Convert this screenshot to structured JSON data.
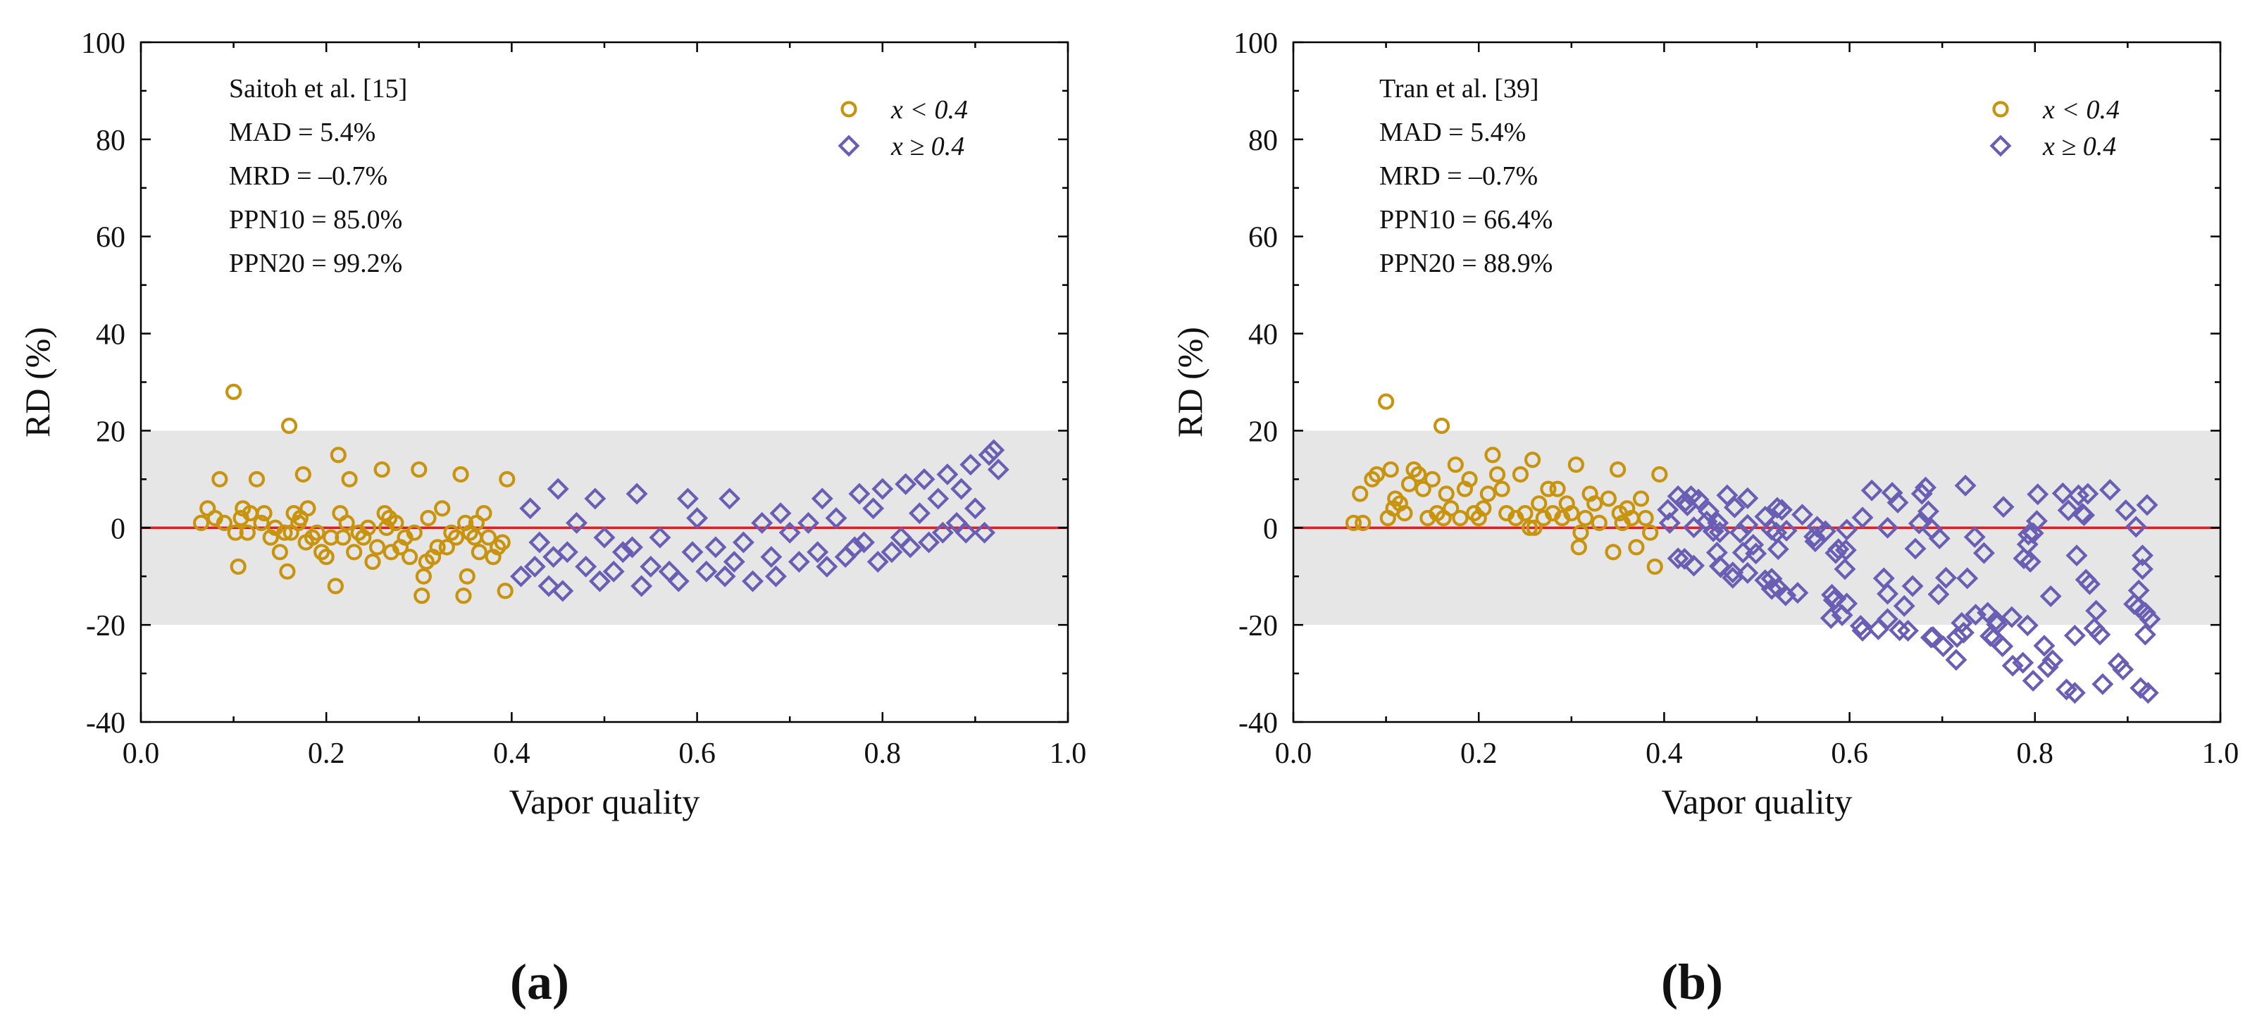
{
  "colors": {
    "low_quality": "#c8940f",
    "high_quality": "#6a5db4",
    "zero_line": "#e02020",
    "band": "#e6e6e6",
    "axis": "#000000"
  },
  "chart_data": [
    {
      "type": "scatter",
      "panel_label": "(a)",
      "title": "",
      "xlabel": "Vapor quality",
      "ylabel": "RD (%)",
      "xlim": [
        0.0,
        1.0
      ],
      "ylim": [
        -40,
        100
      ],
      "xticks": [
        "0.0",
        "0.2",
        "0.4",
        "0.6",
        "0.8",
        "1.0"
      ],
      "yticks": [
        "-40",
        "-20",
        "0",
        "20",
        "40",
        "60",
        "80",
        "100"
      ],
      "band": [
        -20,
        20
      ],
      "reference_line": 0,
      "stats": [
        "Saitoh et al. [15]",
        "MAD = 5.4%",
        "MRD = –0.7%",
        "PPN10 = 85.0%",
        "PPN20 = 99.2%"
      ],
      "legend_position": "top-right",
      "series": [
        {
          "name": "x < 0.4",
          "marker": "circle",
          "x": [
            0.065,
            0.072,
            0.08,
            0.085,
            0.09,
            0.1,
            0.102,
            0.105,
            0.108,
            0.11,
            0.115,
            0.118,
            0.125,
            0.13,
            0.133,
            0.14,
            0.145,
            0.15,
            0.155,
            0.158,
            0.16,
            0.162,
            0.165,
            0.17,
            0.172,
            0.175,
            0.178,
            0.18,
            0.185,
            0.19,
            0.195,
            0.2,
            0.205,
            0.21,
            0.213,
            0.215,
            0.218,
            0.222,
            0.225,
            0.23,
            0.235,
            0.24,
            0.245,
            0.25,
            0.255,
            0.26,
            0.263,
            0.265,
            0.268,
            0.27,
            0.275,
            0.28,
            0.285,
            0.29,
            0.295,
            0.3,
            0.303,
            0.305,
            0.308,
            0.31,
            0.315,
            0.32,
            0.325,
            0.33,
            0.335,
            0.34,
            0.345,
            0.348,
            0.35,
            0.352,
            0.355,
            0.36,
            0.362,
            0.365,
            0.37,
            0.375,
            0.38,
            0.385,
            0.39,
            0.393,
            0.395
          ],
          "values": [
            1,
            4,
            2,
            10,
            1,
            28,
            -1,
            -8,
            2,
            4,
            -1,
            3,
            10,
            1,
            3,
            -2,
            0,
            -5,
            -1,
            -9,
            21,
            -1,
            3,
            1,
            2,
            11,
            -3,
            4,
            -2,
            -1,
            -5,
            -6,
            -2,
            -12,
            15,
            3,
            -2,
            1,
            10,
            -5,
            -1,
            -2,
            0,
            -7,
            -4,
            12,
            3,
            0,
            2,
            -5,
            1,
            -4,
            -2,
            -6,
            -1,
            12,
            -14,
            -10,
            -7,
            2,
            -6,
            -4,
            4,
            -4,
            -1,
            -2,
            11,
            -14,
            1,
            -10,
            -1,
            -2,
            1,
            -5,
            3,
            -2,
            -6,
            -4,
            -3,
            -13,
            10
          ]
        },
        {
          "name": "x ≥ 0.4",
          "marker": "diamond",
          "x": [
            0.41,
            0.42,
            0.425,
            0.43,
            0.44,
            0.445,
            0.45,
            0.455,
            0.46,
            0.47,
            0.48,
            0.49,
            0.495,
            0.5,
            0.51,
            0.52,
            0.53,
            0.535,
            0.54,
            0.55,
            0.56,
            0.57,
            0.58,
            0.59,
            0.595,
            0.6,
            0.61,
            0.62,
            0.63,
            0.635,
            0.64,
            0.65,
            0.66,
            0.67,
            0.68,
            0.685,
            0.69,
            0.7,
            0.71,
            0.72,
            0.73,
            0.735,
            0.74,
            0.75,
            0.76,
            0.77,
            0.775,
            0.78,
            0.79,
            0.795,
            0.8,
            0.81,
            0.82,
            0.825,
            0.83,
            0.84,
            0.845,
            0.85,
            0.86,
            0.865,
            0.87,
            0.88,
            0.885,
            0.89,
            0.895,
            0.9,
            0.91,
            0.915,
            0.92,
            0.925
          ],
          "values": [
            -10,
            4,
            -8,
            -3,
            -12,
            -6,
            8,
            -13,
            -5,
            1,
            -8,
            6,
            -11,
            -2,
            -9,
            -5,
            -4,
            7,
            -12,
            -8,
            -2,
            -9,
            -11,
            6,
            -5,
            2,
            -9,
            -4,
            -10,
            6,
            -7,
            -3,
            -11,
            1,
            -6,
            -10,
            3,
            -1,
            -7,
            1,
            -5,
            6,
            -8,
            2,
            -6,
            -4,
            7,
            -3,
            4,
            -7,
            8,
            -5,
            -2,
            9,
            -4,
            3,
            10,
            -3,
            6,
            -1,
            11,
            1,
            8,
            -1,
            13,
            4,
            -1,
            15,
            16,
            12
          ]
        }
      ]
    },
    {
      "type": "scatter",
      "panel_label": "(b)",
      "title": "",
      "xlabel": "Vapor quality",
      "ylabel": "RD (%)",
      "xlim": [
        0.0,
        1.0
      ],
      "ylim": [
        -40,
        100
      ],
      "xticks": [
        "0.0",
        "0.2",
        "0.4",
        "0.6",
        "0.8",
        "1.0"
      ],
      "yticks": [
        "-40",
        "-20",
        "0",
        "20",
        "40",
        "60",
        "80",
        "100"
      ],
      "band": [
        -20,
        20
      ],
      "reference_line": 0,
      "stats": [
        "Tran et al. [39]",
        "MAD = 5.4%",
        "MRD = –0.7%",
        "PPN10 = 66.4%",
        "PPN20 = 88.9%"
      ],
      "legend_position": "top-right",
      "series": [
        {
          "name": "x < 0.4",
          "marker": "circle",
          "x": [
            0.065,
            0.072,
            0.075,
            0.085,
            0.09,
            0.1,
            0.102,
            0.105,
            0.108,
            0.11,
            0.115,
            0.12,
            0.125,
            0.13,
            0.135,
            0.14,
            0.145,
            0.15,
            0.155,
            0.16,
            0.162,
            0.165,
            0.17,
            0.175,
            0.18,
            0.185,
            0.19,
            0.195,
            0.2,
            0.205,
            0.21,
            0.215,
            0.22,
            0.225,
            0.23,
            0.24,
            0.245,
            0.25,
            0.255,
            0.258,
            0.26,
            0.265,
            0.27,
            0.275,
            0.28,
            0.285,
            0.29,
            0.295,
            0.3,
            0.305,
            0.308,
            0.31,
            0.315,
            0.32,
            0.325,
            0.33,
            0.34,
            0.345,
            0.35,
            0.352,
            0.355,
            0.36,
            0.365,
            0.37,
            0.375,
            0.38,
            0.385,
            0.39,
            0.395
          ],
          "values": [
            1,
            7,
            1,
            10,
            11,
            26,
            2,
            12,
            4,
            6,
            5,
            3,
            9,
            12,
            11,
            8,
            2,
            10,
            3,
            21,
            2,
            7,
            4,
            13,
            2,
            8,
            10,
            3,
            2,
            4,
            7,
            15,
            11,
            8,
            3,
            2,
            11,
            3,
            0,
            14,
            0,
            5,
            2,
            8,
            3,
            8,
            2,
            5,
            3,
            13,
            -4,
            -1,
            2,
            7,
            5,
            1,
            6,
            -5,
            12,
            3,
            1,
            4,
            2,
            -4,
            6,
            2,
            -1,
            -8,
            11
          ]
        }
      ]
    }
  ]
}
